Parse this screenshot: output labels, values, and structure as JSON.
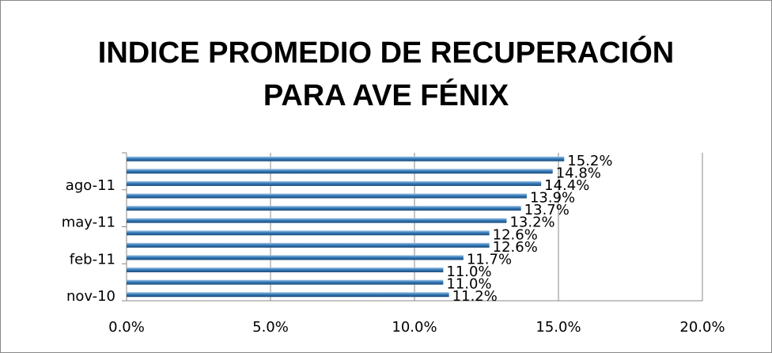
{
  "chart_data": {
    "type": "hbar",
    "title": "INDICE PROMEDIO DE RECUPERACIÓN PARA AVE FÉNIX",
    "categories": [
      "nov-10",
      null,
      null,
      "feb-11",
      null,
      null,
      "may-11",
      null,
      null,
      "ago-11",
      null,
      null
    ],
    "values": [
      11.2,
      11.0,
      11.0,
      11.7,
      12.6,
      12.6,
      13.2,
      13.7,
      13.9,
      14.4,
      14.8,
      15.2
    ],
    "value_labels": [
      "11.2%",
      "11.0%",
      "11.0%",
      "11.7%",
      "12.6%",
      "12.6%",
      "13.2%",
      "13.7%",
      "13.9%",
      "14.4%",
      "14.8%",
      "15.2%"
    ],
    "color": "#2e75b6",
    "xlim": [
      0,
      20
    ],
    "xticks": [
      {
        "value": 0,
        "label": "0.0%"
      },
      {
        "value": 5,
        "label": "5.0%"
      },
      {
        "value": 10,
        "label": "10.0%"
      },
      {
        "value": 15,
        "label": "15.0%"
      },
      {
        "value": 20,
        "label": "20.0%"
      }
    ],
    "grid": true
  }
}
